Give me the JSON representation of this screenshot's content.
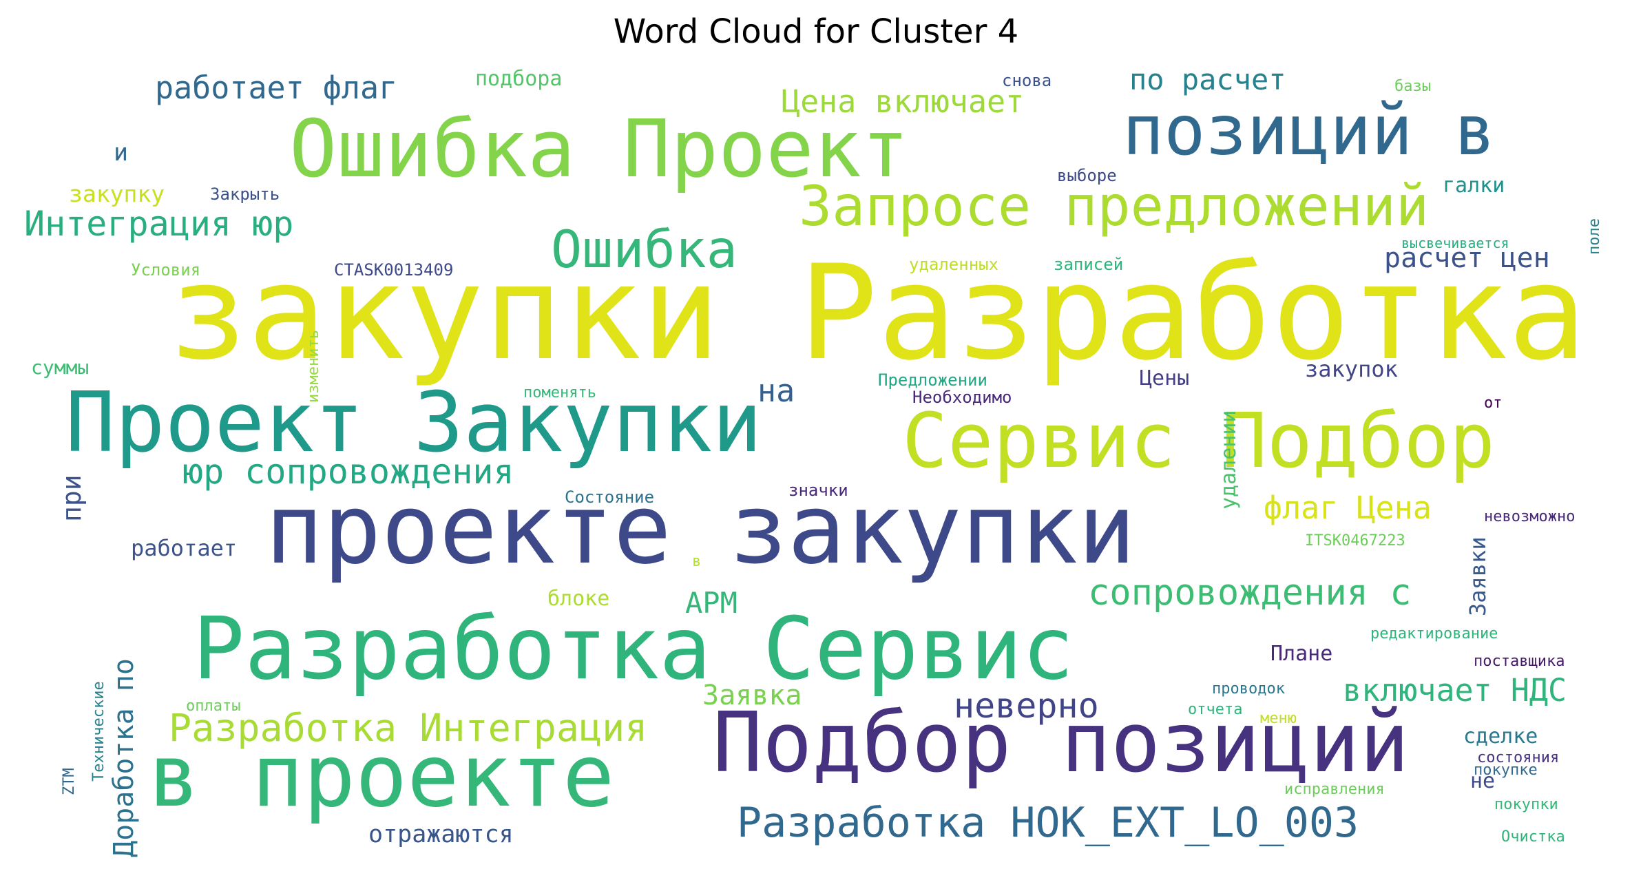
{
  "title": "Word Cloud for Cluster 4",
  "words": [
    {
      "text": "закупки Разработка",
      "color": "#dfe318"
    },
    {
      "text": "проекте закупки",
      "color": "#3e4989"
    },
    {
      "text": "Подбор позиций",
      "color": "#46327e"
    },
    {
      "text": "Разработка Сервис",
      "color": "#2fb47c"
    },
    {
      "text": "в проекте",
      "color": "#35b779"
    },
    {
      "text": "Проект Закупки",
      "color": "#1f9a8a"
    },
    {
      "text": "Ошибка Проект",
      "color": "#84d44b"
    },
    {
      "text": "позиций в",
      "color": "#31688e"
    },
    {
      "text": "Сервис Подбор",
      "color": "#c2df23"
    },
    {
      "text": "Запросе предложений",
      "color": "#addc30"
    },
    {
      "text": "Ошибка",
      "color": "#35b779"
    },
    {
      "text": "Разработка HOK_EXT_LO_003",
      "color": "#31688e"
    },
    {
      "text": "Разработка Интеграция",
      "color": "#a8db34"
    },
    {
      "text": "сопровождения с",
      "color": "#3dbc74"
    },
    {
      "text": "юр сопровождения",
      "color": "#22a884"
    },
    {
      "text": "Интеграция юр",
      "color": "#29af7f"
    },
    {
      "text": "Цена включает",
      "color": "#9dd93b"
    },
    {
      "text": "работает флаг",
      "color": "#31688e"
    },
    {
      "text": "включает НДС",
      "color": "#2fb47c"
    },
    {
      "text": "неверно",
      "color": "#414487"
    },
    {
      "text": "Заявка",
      "color": "#7ad151"
    },
    {
      "text": "флаг Цена",
      "color": "#d8e219"
    },
    {
      "text": "расчет цен",
      "color": "#3b528b"
    },
    {
      "text": "по расчет",
      "color": "#26828e"
    },
    {
      "text": "АРМ",
      "color": "#35b779"
    },
    {
      "text": "на",
      "color": "#355f8d"
    },
    {
      "text": "Доработка по",
      "color": "#2c728e"
    },
    {
      "text": "отражаются",
      "color": "#39568c"
    },
    {
      "text": "работает",
      "color": "#3b528b"
    },
    {
      "text": "закупку",
      "color": "#c8e020"
    },
    {
      "text": "подбора",
      "color": "#52c569"
    },
    {
      "text": "суммы",
      "color": "#3dbc74"
    },
    {
      "text": "и",
      "color": "#31688e"
    },
    {
      "text": "при",
      "color": "#3b528b"
    },
    {
      "text": "Заявки",
      "color": "#38598c"
    },
    {
      "text": "удалении",
      "color": "#4ac16d"
    },
    {
      "text": "закупок",
      "color": "#414487"
    },
    {
      "text": "Цены",
      "color": "#433e85"
    },
    {
      "text": "галки",
      "color": "#21918c"
    },
    {
      "text": "блоке",
      "color": "#addc30"
    },
    {
      "text": "Плане",
      "color": "#482878"
    },
    {
      "text": "сделке",
      "color": "#2a788e"
    },
    {
      "text": "не",
      "color": "#3e4989"
    },
    {
      "text": "Закрыть",
      "color": "#3b528b"
    },
    {
      "text": "Условия",
      "color": "#7ad151"
    },
    {
      "text": "CTASK0013409",
      "color": "#3e4989"
    },
    {
      "text": "изменить",
      "color": "#95d840"
    },
    {
      "text": "поменять",
      "color": "#35b779"
    },
    {
      "text": "Состояние",
      "color": "#2c728e"
    },
    {
      "text": "значки",
      "color": "#482878"
    },
    {
      "text": "в",
      "color": "#b5de2b"
    },
    {
      "text": "Предложении",
      "color": "#22a884"
    },
    {
      "text": "Необходимо",
      "color": "#482878"
    },
    {
      "text": "удаленных",
      "color": "#bddf26"
    },
    {
      "text": "записей",
      "color": "#2fb47c"
    },
    {
      "text": "выборе",
      "color": "#3e4989"
    },
    {
      "text": "снова",
      "color": "#3b528b"
    },
    {
      "text": "базы",
      "color": "#6ccd5a"
    },
    {
      "text": "поле",
      "color": "#26828e"
    },
    {
      "text": "высвечивается",
      "color": "#29af7f"
    },
    {
      "text": "от",
      "color": "#440154"
    },
    {
      "text": "невозможно",
      "color": "#482878"
    },
    {
      "text": "ITSK0467223",
      "color": "#6ccd5a"
    },
    {
      "text": "редактирование",
      "color": "#2fb47c"
    },
    {
      "text": "поставщика",
      "color": "#481a6c"
    },
    {
      "text": "проводок",
      "color": "#2a788e"
    },
    {
      "text": "отчета",
      "color": "#2fb47c"
    },
    {
      "text": "меню",
      "color": "#c2df23"
    },
    {
      "text": "состояния",
      "color": "#46327e"
    },
    {
      "text": "покупке",
      "color": "#31688e"
    },
    {
      "text": "исправления",
      "color": "#6ccd5a"
    },
    {
      "text": "покупки",
      "color": "#35b779"
    },
    {
      "text": "Очистка",
      "color": "#2fb47c"
    },
    {
      "text": "оплаты",
      "color": "#6ccd5a"
    },
    {
      "text": "Технические",
      "color": "#26828e"
    },
    {
      "text": "ZTM",
      "color": "#31688e"
    }
  ]
}
